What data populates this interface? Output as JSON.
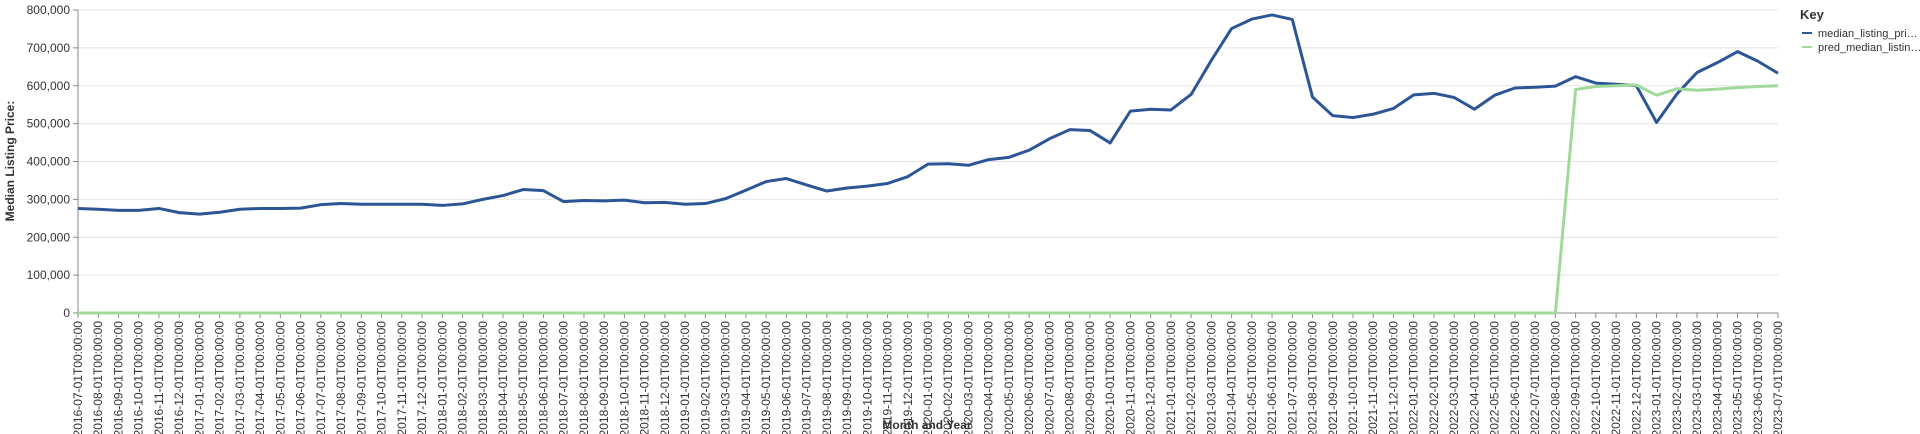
{
  "chart_data": {
    "type": "line",
    "x_label": "Month and Year",
    "y_label": "Median Listing Price:",
    "legend_title": "Key",
    "legend": "top-right",
    "grid": true,
    "categories": [
      "2016-07-01T00:00:00",
      "2016-08-01T00:00:00",
      "2016-09-01T00:00:00",
      "2016-10-01T00:00:00",
      "2016-11-01T00:00:00",
      "2016-12-01T00:00:00",
      "2017-01-01T00:00:00",
      "2017-02-01T00:00:00",
      "2017-03-01T00:00:00",
      "2017-04-01T00:00:00",
      "2017-05-01T00:00:00",
      "2017-06-01T00:00:00",
      "2017-07-01T00:00:00",
      "2017-08-01T00:00:00",
      "2017-09-01T00:00:00",
      "2017-10-01T00:00:00",
      "2017-11-01T00:00:00",
      "2017-12-01T00:00:00",
      "2018-01-01T00:00:00",
      "2018-02-01T00:00:00",
      "2018-03-01T00:00:00",
      "2018-04-01T00:00:00",
      "2018-05-01T00:00:00",
      "2018-06-01T00:00:00",
      "2018-07-01T00:00:00",
      "2018-08-01T00:00:00",
      "2018-09-01T00:00:00",
      "2018-10-01T00:00:00",
      "2018-11-01T00:00:00",
      "2018-12-01T00:00:00",
      "2019-01-01T00:00:00",
      "2019-02-01T00:00:00",
      "2019-03-01T00:00:00",
      "2019-04-01T00:00:00",
      "2019-05-01T00:00:00",
      "2019-06-01T00:00:00",
      "2019-07-01T00:00:00",
      "2019-08-01T00:00:00",
      "2019-09-01T00:00:00",
      "2019-10-01T00:00:00",
      "2019-11-01T00:00:00",
      "2019-12-01T00:00:00",
      "2020-01-01T00:00:00",
      "2020-02-01T00:00:00",
      "2020-03-01T00:00:00",
      "2020-04-01T00:00:00",
      "2020-05-01T00:00:00",
      "2020-06-01T00:00:00",
      "2020-07-01T00:00:00",
      "2020-08-01T00:00:00",
      "2020-09-01T00:00:00",
      "2020-10-01T00:00:00",
      "2020-11-01T00:00:00",
      "2020-12-01T00:00:00",
      "2021-01-01T00:00:00",
      "2021-02-01T00:00:00",
      "2021-03-01T00:00:00",
      "2021-04-01T00:00:00",
      "2021-05-01T00:00:00",
      "2021-06-01T00:00:00",
      "2021-07-01T00:00:00",
      "2021-08-01T00:00:00",
      "2021-09-01T00:00:00",
      "2021-10-01T00:00:00",
      "2021-11-01T00:00:00",
      "2021-12-01T00:00:00",
      "2022-01-01T00:00:00",
      "2022-02-01T00:00:00",
      "2022-03-01T00:00:00",
      "2022-04-01T00:00:00",
      "2022-05-01T00:00:00",
      "2022-06-01T00:00:00",
      "2022-07-01T00:00:00",
      "2022-08-01T00:00:00",
      "2022-09-01T00:00:00",
      "2022-10-01T00:00:00",
      "2022-11-01T00:00:00",
      "2022-12-01T00:00:00",
      "2023-01-01T00:00:00",
      "2023-02-01T00:00:00",
      "2023-03-01T00:00:00",
      "2023-04-01T00:00:00",
      "2023-05-01T00:00:00",
      "2023-06-01T00:00:00",
      "2023-07-01T00:00:00"
    ],
    "series": [
      {
        "name": "median_listing_pri…",
        "color": "#2c5596",
        "values": [
          276000,
          274000,
          271000,
          271000,
          276000,
          265000,
          261000,
          266000,
          274000,
          276000,
          276000,
          277000,
          286000,
          289000,
          287000,
          287000,
          287000,
          287000,
          284000,
          288000,
          300000,
          310000,
          326000,
          323000,
          294000,
          297000,
          296000,
          298000,
          291000,
          292000,
          287000,
          289000,
          302000,
          324000,
          347000,
          355000,
          338000,
          322000,
          330000,
          335000,
          342000,
          360000,
          393000,
          394000,
          390000,
          405000,
          411000,
          430000,
          460000,
          484000,
          482000,
          449000,
          533000,
          538000,
          536000,
          577000,
          667000,
          751000,
          776000,
          787000,
          775000,
          570000,
          521000,
          516000,
          525000,
          540000,
          576000,
          580000,
          569000,
          538000,
          575000,
          594000,
          596000,
          599000,
          624000,
          607000,
          604000,
          600000,
          503000,
          578000,
          635000,
          661000,
          690000,
          665000,
          633000
        ]
      },
      {
        "name": "pred_median_listin…",
        "color": "#a1d99b",
        "values": [
          0,
          0,
          0,
          0,
          0,
          0,
          0,
          0,
          0,
          0,
          0,
          0,
          0,
          0,
          0,
          0,
          0,
          0,
          0,
          0,
          0,
          0,
          0,
          0,
          0,
          0,
          0,
          0,
          0,
          0,
          0,
          0,
          0,
          0,
          0,
          0,
          0,
          0,
          0,
          0,
          0,
          0,
          0,
          0,
          0,
          0,
          0,
          0,
          0,
          0,
          0,
          0,
          0,
          0,
          0,
          0,
          0,
          0,
          0,
          0,
          0,
          0,
          0,
          0,
          0,
          0,
          0,
          0,
          0,
          0,
          0,
          0,
          0,
          0,
          590000,
          598000,
          600000,
          602000,
          575000,
          592000,
          588000,
          591000,
          595000,
          598000,
          600000
        ]
      }
    ],
    "ylim": [
      0,
      800000
    ],
    "yticks": [
      0,
      {
        "value": 100000,
        "label": "100,000"
      },
      {
        "value": 200000,
        "label": "200,000"
      },
      {
        "value": 300000,
        "label": "300,000"
      },
      {
        "value": 400000,
        "label": "400,000"
      },
      {
        "value": 500000,
        "label": "500,000"
      },
      {
        "value": 600000,
        "label": "600,000"
      },
      {
        "value": 700000,
        "label": "700,000"
      },
      {
        "value": 800000,
        "label": "800,000"
      }
    ]
  }
}
